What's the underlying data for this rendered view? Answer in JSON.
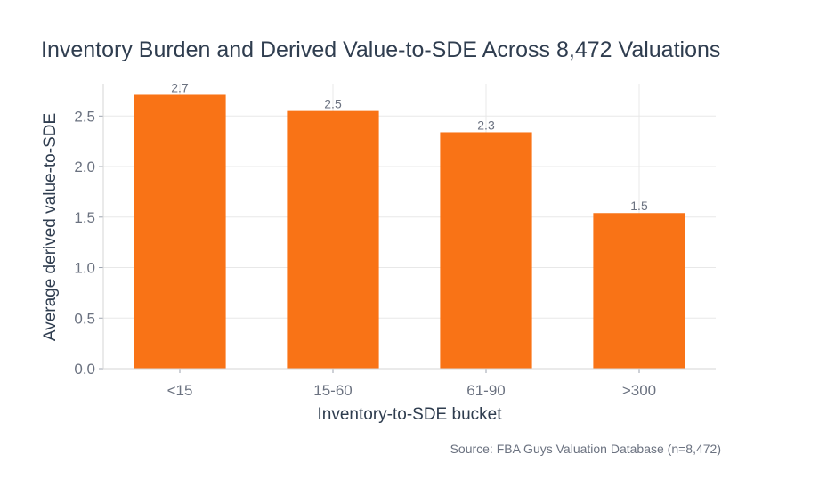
{
  "chart_data": {
    "type": "bar",
    "title": "Inventory Burden and Derived Value-to-SDE Across 8,472 Valuations",
    "xlabel": "Inventory-to-SDE bucket",
    "ylabel": "Average derived value-to-SDE",
    "categories": [
      "<15",
      "15-60",
      "61-90",
      ">300"
    ],
    "values": [
      2.71,
      2.55,
      2.34,
      1.54
    ],
    "data_labels": [
      "2.7",
      "2.5",
      "2.3",
      "1.5"
    ],
    "ylim": [
      0,
      2.82
    ],
    "yticks": [
      0,
      0.5,
      1.0,
      1.5,
      2.0,
      2.5
    ],
    "ytick_labels": [
      "0.0",
      "0.5",
      "1.0",
      "1.5",
      "2.0",
      "2.5"
    ],
    "grid": true,
    "bar_color": "#f97316",
    "source": "Source: FBA Guys Valuation Database (n=8,472)"
  }
}
